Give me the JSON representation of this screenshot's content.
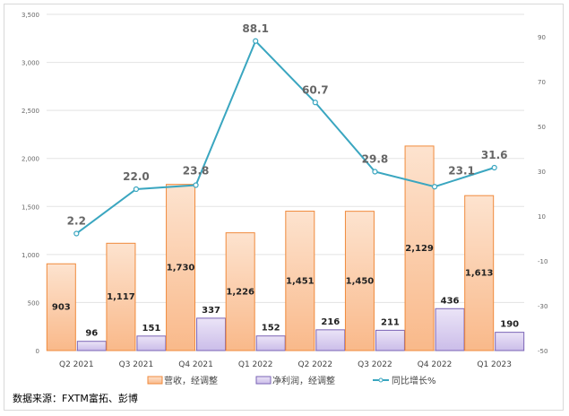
{
  "chart_data": {
    "type": "bar+line",
    "categories": [
      "Q2 2021",
      "Q3 2021",
      "Q4 2021",
      "Q1 2022",
      "Q2 2022",
      "Q3 2022",
      "Q4 2022",
      "Q1 2023"
    ],
    "series": [
      {
        "name": "营收，经调整",
        "type": "bar",
        "axis": "left",
        "color": "#f4a460",
        "values": [
          903,
          1117,
          1730,
          1226,
          1451,
          1450,
          2129,
          1613
        ]
      },
      {
        "name": "净利润，经调整",
        "type": "bar",
        "axis": "left",
        "color": "#9b87c9",
        "values": [
          96,
          151,
          337,
          152,
          216,
          211,
          436,
          190
        ]
      },
      {
        "name": "同比增长%",
        "type": "line",
        "axis": "right",
        "color": "#3aa6c0",
        "values": [
          2.2,
          22.0,
          23.8,
          88.1,
          60.7,
          29.8,
          23.1,
          31.6
        ]
      }
    ],
    "ylim_left": [
      0,
      3500
    ],
    "yticks_left": [
      "0",
      "500",
      "1,000",
      "1,500",
      "2,000",
      "2,500",
      "3,000",
      "3,500"
    ],
    "ylim_right": [
      -50,
      90
    ],
    "yticks_right": [
      "-50",
      "-30",
      "-10",
      "10",
      "30",
      "50",
      "70",
      "90"
    ],
    "grid": true,
    "legend": "bottom"
  },
  "source": "数据来源：FXTM富拓、彭博"
}
